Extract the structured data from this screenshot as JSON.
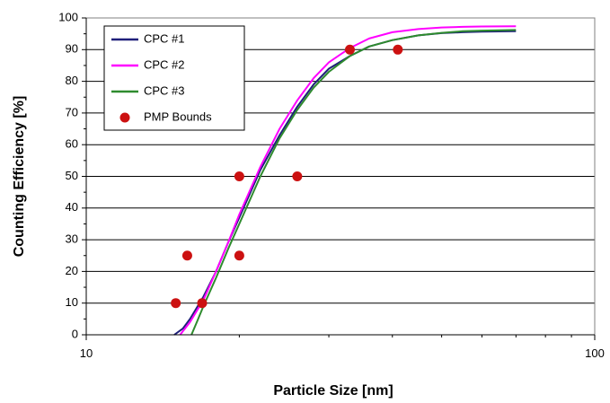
{
  "chart_data": {
    "type": "line",
    "xlabel": "Particle Size [nm]",
    "ylabel": "Counting Efficiency [%]",
    "xscale": "log",
    "xlim": [
      10,
      100
    ],
    "ylim": [
      0,
      100
    ],
    "x_ticks": [
      10,
      100
    ],
    "y_ticks": [
      0,
      10,
      20,
      30,
      40,
      50,
      60,
      70,
      80,
      90,
      100
    ],
    "grid": "horizontal",
    "legend_position": "top-left",
    "series": [
      {
        "name": "CPC #1",
        "color": "#1f1f7a",
        "x": [
          14.9,
          15.5,
          16,
          17,
          18,
          19,
          20,
          22,
          24,
          26,
          28,
          30,
          33,
          36,
          40,
          45,
          50,
          55,
          60,
          70
        ],
        "y": [
          0,
          2,
          5,
          12,
          20,
          29,
          37,
          52,
          63,
          72,
          79,
          84,
          88,
          91,
          93,
          94.5,
          95.2,
          95.5,
          95.7,
          95.8
        ]
      },
      {
        "name": "CPC #2",
        "color": "#ff00ff",
        "x": [
          15.3,
          16,
          17,
          18,
          19,
          20,
          22,
          24,
          26,
          28,
          30,
          33,
          36,
          40,
          45,
          50,
          55,
          60,
          70
        ],
        "y": [
          0,
          4,
          11,
          20,
          29,
          38,
          53,
          65,
          74,
          81,
          86,
          90.5,
          93.5,
          95.5,
          96.5,
          97,
          97.2,
          97.3,
          97.4
        ]
      },
      {
        "name": "CPC #3",
        "color": "#2e8b2e",
        "x": [
          16.1,
          16.5,
          17,
          18,
          19,
          20,
          22,
          24,
          26,
          28,
          30,
          33,
          36,
          40,
          45,
          50,
          55,
          60,
          70
        ],
        "y": [
          0,
          4,
          9,
          18,
          27,
          35,
          50,
          62,
          71,
          78,
          83,
          88,
          91,
          93,
          94.5,
          95.3,
          95.8,
          96,
          96.2
        ]
      }
    ],
    "points": {
      "name": "PMP Bounds",
      "color": "#cc1111",
      "x": [
        15,
        16.9,
        15.8,
        20,
        20,
        26,
        33,
        41
      ],
      "y": [
        10,
        10,
        25,
        25,
        50,
        50,
        90,
        90
      ]
    }
  }
}
